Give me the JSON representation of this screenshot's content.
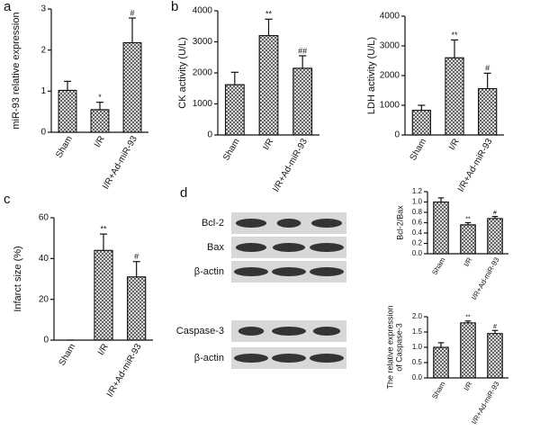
{
  "panel_labels": [
    "a",
    "b",
    "c",
    "d"
  ],
  "blots": [
    "Bcl-2",
    "Bax",
    "β-actin",
    "Caspase-3",
    "β-actin"
  ],
  "chart_data": [
    {
      "type": "bar",
      "ylabel": [
        "miR-93 relative expression"
      ],
      "categories": [
        "Sham",
        "I/R",
        "I/R+Ad-miR-93"
      ],
      "values": [
        1.02,
        0.55,
        2.18
      ],
      "errors": [
        0.22,
        0.18,
        0.6
      ],
      "annotations": [
        null,
        "*",
        "#"
      ],
      "ylim": [
        0,
        3
      ],
      "yticks": [
        0,
        1,
        2,
        3
      ],
      "color": "#444"
    },
    {
      "type": "bar",
      "ylabel": [
        "CK activity (U/L)"
      ],
      "categories": [
        "Sham",
        "I/R",
        "I/R+Ad-miR-93"
      ],
      "values": [
        1620,
        3200,
        2150
      ],
      "errors": [
        400,
        530,
        400
      ],
      "annotations": [
        null,
        "**",
        "##"
      ],
      "ylim": [
        0,
        4000
      ],
      "yticks": [
        0,
        1000,
        2000,
        3000,
        4000
      ],
      "color": "#444"
    },
    {
      "type": "bar",
      "ylabel": [
        "LDH activity (U/L)"
      ],
      "categories": [
        "Sham",
        "I/R",
        "I/R+Ad-miR-93"
      ],
      "values": [
        830,
        2600,
        1560
      ],
      "errors": [
        170,
        600,
        520
      ],
      "annotations": [
        null,
        "**",
        "#"
      ],
      "ylim": [
        0,
        4000
      ],
      "yticks": [
        0,
        1000,
        2000,
        3000,
        4000
      ],
      "color": "#444"
    },
    {
      "type": "bar",
      "ylabel": [
        "Infarct size (%)"
      ],
      "categories": [
        "Sham",
        "I/R",
        "I/R+Ad-miR-93"
      ],
      "values": [
        0,
        44,
        31
      ],
      "errors": [
        0,
        8,
        7.5
      ],
      "annotations": [
        null,
        "**",
        "#"
      ],
      "ylim": [
        0,
        60
      ],
      "yticks": [
        0,
        20,
        40,
        60
      ],
      "color": "#444"
    },
    {
      "type": "bar",
      "ylabel": [
        "Bcl-2/Bax"
      ],
      "categories": [
        "Sham",
        "I/R",
        "I/R+Ad-miR-93"
      ],
      "values": [
        1.0,
        0.56,
        0.68
      ],
      "errors": [
        0.08,
        0.04,
        0.04
      ],
      "annotations": [
        null,
        "**",
        "#"
      ],
      "ylim": [
        0,
        1.2
      ],
      "yticks": [
        {
          "value": 0,
          "label": "0.0"
        },
        0.2,
        0.4,
        0.6,
        0.8,
        {
          "value": 1,
          "label": "1.0"
        },
        1.2
      ],
      "color": "#444"
    },
    {
      "type": "bar",
      "ylabel": [
        "The relative expression",
        "of Caspase-3"
      ],
      "categories": [
        "Sham",
        "I/R",
        "I/R+Ad-miR-93"
      ],
      "values": [
        1.0,
        1.8,
        1.45
      ],
      "errors": [
        0.15,
        0.06,
        0.1
      ],
      "annotations": [
        null,
        "**",
        "#"
      ],
      "ylim": [
        0,
        2
      ],
      "yticks": [
        {
          "value": 0,
          "label": "0.0"
        },
        0.5,
        {
          "value": 1,
          "label": "1.0"
        },
        1.5,
        {
          "value": 2,
          "label": "2.0"
        }
      ],
      "color": "#444"
    }
  ]
}
